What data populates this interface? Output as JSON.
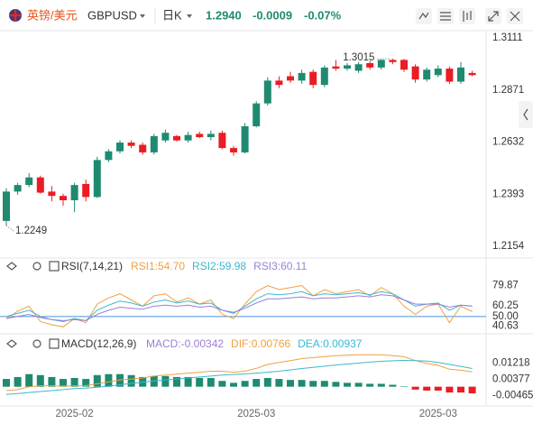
{
  "header": {
    "symbol_cn": "英镑/美元",
    "symbol": "GBPUSD",
    "period": "日K",
    "price": "1.2940",
    "change": "-0.0009",
    "change_pct": "-0.07%"
  },
  "chart_data": [
    {
      "type": "candlestick",
      "categories": [
        null,
        null,
        null,
        null,
        null,
        null,
        "2025-02",
        null,
        null,
        null,
        null,
        null,
        null,
        null,
        null,
        null,
        null,
        null,
        null,
        null,
        null,
        null,
        "2025-03",
        null,
        null,
        null,
        null,
        null,
        null,
        null,
        null,
        null,
        null,
        null,
        null,
        null,
        null,
        null,
        "2025-03",
        null,
        null,
        null
      ],
      "open": [
        1.227,
        1.2405,
        1.2435,
        1.247,
        1.2405,
        1.2385,
        1.2365,
        1.244,
        1.238,
        1.255,
        1.259,
        1.263,
        1.262,
        1.2585,
        1.264,
        1.266,
        1.264,
        1.267,
        1.2655,
        1.2675,
        1.2605,
        1.2585,
        1.2705,
        1.281,
        1.2915,
        1.2935,
        1.2915,
        1.2955,
        1.2895,
        1.298,
        1.297,
        1.296,
        1.2995,
        1.2975,
        1.301,
        1.301,
        1.298,
        1.292,
        1.294,
        1.297,
        1.291,
        1.295
      ],
      "high": [
        1.242,
        1.2445,
        1.249,
        1.2478,
        1.243,
        1.2395,
        1.2445,
        1.246,
        1.2565,
        1.26,
        1.264,
        1.264,
        1.263,
        1.267,
        1.269,
        1.2665,
        1.268,
        1.268,
        1.2685,
        1.2685,
        1.2615,
        1.272,
        1.282,
        1.293,
        1.2935,
        1.2955,
        1.2965,
        1.2965,
        1.2985,
        1.301,
        1.2995,
        1.3,
        1.3005,
        1.3012,
        1.3015,
        1.3014,
        1.299,
        1.2975,
        1.2985,
        1.298,
        1.3,
        1.296
      ],
      "low": [
        1.2249,
        1.239,
        1.2425,
        1.2395,
        1.236,
        1.234,
        1.231,
        1.236,
        1.2375,
        1.254,
        1.258,
        1.2605,
        1.2575,
        1.2575,
        1.263,
        1.2635,
        1.263,
        1.265,
        1.264,
        1.26,
        1.257,
        1.258,
        1.27,
        1.28,
        1.288,
        1.2905,
        1.29,
        1.288,
        1.2885,
        1.296,
        1.296,
        1.295,
        1.2965,
        1.2965,
        1.299,
        1.2955,
        1.2905,
        1.291,
        1.293,
        1.29,
        1.29,
        1.2935
      ],
      "close": [
        1.2405,
        1.2435,
        1.247,
        1.24,
        1.2385,
        1.2365,
        1.2435,
        1.238,
        1.255,
        1.259,
        1.263,
        1.2615,
        1.2585,
        1.266,
        1.2675,
        1.264,
        1.2665,
        1.2655,
        1.267,
        1.2605,
        1.2585,
        1.2705,
        1.281,
        1.2915,
        1.2895,
        1.2915,
        1.295,
        1.2895,
        1.2975,
        1.297,
        1.2985,
        1.299,
        1.2975,
        1.301,
        1.3,
        1.2965,
        1.292,
        1.2965,
        1.297,
        1.291,
        1.2975,
        1.294
      ],
      "up_color": "#1f8a70",
      "down_color": "#eb1c24",
      "ylim": [
        1.2108,
        1.3136
      ],
      "yticks": [
        1.3111,
        1.2871,
        1.2632,
        1.2393,
        1.2154
      ],
      "annotations": [
        {
          "value": 1.3015,
          "label": "1.3015"
        },
        {
          "value": 1.2249,
          "label": "1.2249"
        }
      ]
    },
    {
      "type": "line",
      "title": "RSI(7,14,21)",
      "ylim": [
        35,
        90
      ],
      "yticks": [
        79.87,
        60.25,
        {
          "value": 50,
          "label": "50.00"
        },
        40.63
      ],
      "hline": {
        "value": 50,
        "color": "#4a90e2"
      },
      "series": [
        {
          "name": "RSI1:54.70",
          "color": "#f0a040",
          "values": [
            48,
            55,
            60,
            45,
            42,
            40,
            48,
            44,
            62,
            68,
            72,
            66,
            60,
            70,
            72,
            64,
            68,
            62,
            66,
            52,
            48,
            62,
            74,
            80,
            76,
            78,
            80,
            70,
            76,
            72,
            74,
            76,
            70,
            78,
            72,
            60,
            52,
            60,
            62,
            44,
            60,
            54.7
          ]
        },
        {
          "name": "RSI2:59.98",
          "color": "#3bb8d0",
          "values": [
            50,
            53,
            56,
            50,
            47,
            45,
            48,
            46,
            56,
            61,
            65,
            63,
            60,
            64,
            66,
            63,
            65,
            62,
            63,
            56,
            53,
            60,
            67,
            72,
            71,
            72,
            74,
            70,
            72,
            71,
            72,
            73,
            71,
            74,
            72,
            66,
            60,
            62,
            63,
            56,
            61,
            59.98
          ]
        },
        {
          "name": "RSI3:60.11",
          "color": "#9b7fd4",
          "values": [
            48,
            50,
            52,
            49,
            47,
            46,
            47,
            46,
            52,
            56,
            59,
            58,
            57,
            60,
            61,
            60,
            61,
            59,
            60,
            56,
            54,
            58,
            63,
            67,
            67,
            68,
            69,
            67,
            68,
            68,
            69,
            70,
            69,
            71,
            70,
            66,
            62,
            62,
            62,
            59,
            61,
            60.11
          ]
        }
      ]
    },
    {
      "type": "combo",
      "title": "MACD(12,26,9)",
      "ylim": [
        -0.009,
        0.018
      ],
      "yticks": [
        0.01218,
        0.00377,
        -0.00465
      ],
      "series": [
        {
          "name": "MACD:-0.00342",
          "color": "#9b7fd4",
          "kind": "bar",
          "up_color": "#1f8a70",
          "down_color": "#eb1c24",
          "values": [
            0.004,
            0.005,
            0.0065,
            0.006,
            0.005,
            0.004,
            0.0045,
            0.004,
            0.006,
            0.0065,
            0.0065,
            0.006,
            0.005,
            0.0055,
            0.0055,
            0.005,
            0.005,
            0.0045,
            0.0045,
            0.003,
            0.002,
            0.003,
            0.004,
            0.0045,
            0.004,
            0.0035,
            0.0035,
            0.003,
            0.003,
            0.0025,
            0.002,
            0.002,
            0.0015,
            0.0015,
            0.001,
            0.0002,
            -0.0015,
            -0.002,
            -0.002,
            -0.003,
            -0.003,
            -0.00342
          ]
        },
        {
          "name": "DIF:0.00766",
          "color": "#f0a040",
          "kind": "line",
          "values": [
            -0.002,
            -0.0015,
            0,
            0.0005,
            0.0005,
            0.0003,
            0.0005,
            0.0005,
            0.0015,
            0.0025,
            0.0035,
            0.004,
            0.0045,
            0.0055,
            0.006,
            0.0065,
            0.007,
            0.0075,
            0.008,
            0.008,
            0.0075,
            0.008,
            0.0095,
            0.0115,
            0.0125,
            0.0135,
            0.0145,
            0.015,
            0.0155,
            0.016,
            0.0163,
            0.0165,
            0.0165,
            0.0165,
            0.016,
            0.0155,
            0.0135,
            0.012,
            0.011,
            0.009,
            0.0085,
            0.00766
          ]
        },
        {
          "name": "DEA:0.00937",
          "color": "#3bb8d0",
          "kind": "line",
          "values": [
            -0.004,
            -0.0035,
            -0.003,
            -0.0025,
            -0.002,
            -0.0015,
            -0.001,
            -0.0007,
            -0.0003,
            0.0002,
            0.001,
            0.0017,
            0.0023,
            0.003,
            0.0035,
            0.004,
            0.0045,
            0.005,
            0.0055,
            0.006,
            0.0063,
            0.0066,
            0.007,
            0.0075,
            0.008,
            0.0087,
            0.0094,
            0.01,
            0.0106,
            0.0112,
            0.0117,
            0.0122,
            0.0127,
            0.0131,
            0.0134,
            0.0136,
            0.0135,
            0.0132,
            0.0125,
            0.0115,
            0.0105,
            0.00937
          ]
        }
      ]
    }
  ]
}
